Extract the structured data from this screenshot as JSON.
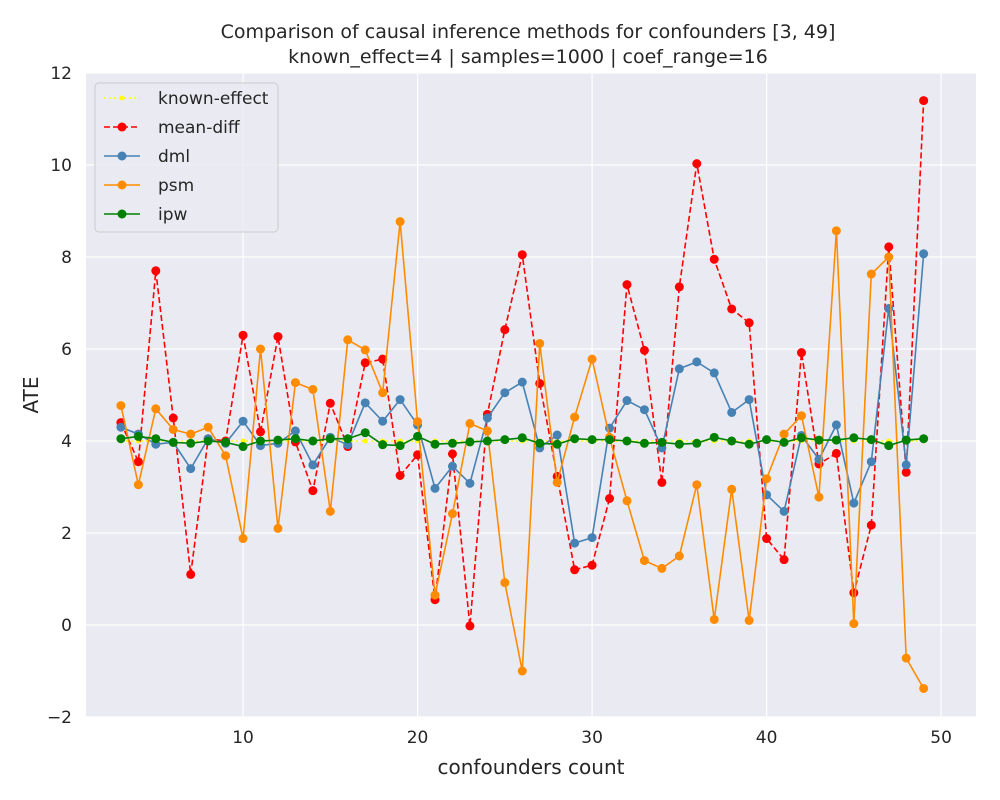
{
  "chart_data": {
    "type": "line",
    "title": "Comparison of causal inference methods for confounders [3, 49]",
    "subtitle": "known_effect=4 | samples=1000 | coef_range=16",
    "xlabel": "confounders count",
    "ylabel": "ATE",
    "xlim": [
      1,
      52
    ],
    "ylim": [
      -2,
      12
    ],
    "xticks": [
      10,
      20,
      30,
      40,
      50
    ],
    "yticks": [
      -2,
      0,
      2,
      4,
      6,
      8,
      10,
      12
    ],
    "ytick_labels": [
      "−2",
      "0",
      "2",
      "4",
      "6",
      "8",
      "10",
      "12"
    ],
    "grid": true,
    "legend_position": "top-left",
    "x": [
      3,
      4,
      5,
      6,
      7,
      8,
      9,
      10,
      11,
      12,
      13,
      14,
      15,
      16,
      17,
      18,
      19,
      20,
      21,
      22,
      23,
      24,
      25,
      26,
      27,
      28,
      29,
      30,
      31,
      32,
      33,
      34,
      35,
      36,
      37,
      38,
      39,
      40,
      41,
      42,
      43,
      44,
      45,
      46,
      47,
      48,
      49
    ],
    "series": [
      {
        "name": "known-effect",
        "color": "#ffff00",
        "dash": "dotted",
        "marker_size": 2.5,
        "values": [
          4,
          4,
          4,
          4,
          4,
          4,
          4,
          4,
          4,
          4,
          4,
          4,
          4,
          4,
          4,
          4,
          4,
          4,
          4,
          4,
          4,
          4,
          4,
          4,
          4,
          4,
          4,
          4,
          4,
          4,
          4,
          4,
          4,
          4,
          4,
          4,
          4,
          4,
          4,
          4,
          4,
          4,
          4,
          4,
          4,
          4,
          4
        ]
      },
      {
        "name": "mean-diff",
        "color": "#ff0000",
        "dash": "dashed",
        "marker_size": 4.5,
        "values": [
          4.4,
          3.55,
          7.7,
          4.5,
          1.1,
          4.05,
          4.0,
          6.3,
          4.2,
          6.27,
          3.98,
          2.92,
          4.82,
          3.88,
          5.7,
          5.78,
          3.25,
          3.7,
          0.55,
          3.72,
          -0.02,
          4.58,
          6.42,
          8.05,
          5.25,
          3.23,
          1.2,
          1.3,
          2.75,
          7.4,
          5.97,
          3.1,
          7.35,
          10.03,
          7.95,
          6.87,
          6.57,
          1.88,
          1.42,
          5.92,
          3.5,
          3.73,
          0.7,
          2.17,
          8.22,
          3.32,
          11.4
        ]
      },
      {
        "name": "dml",
        "color": "#4682b4",
        "dash": "solid",
        "marker_size": 4.5,
        "values": [
          4.3,
          4.15,
          3.93,
          3.97,
          3.4,
          4.05,
          3.95,
          4.43,
          3.9,
          3.95,
          4.22,
          3.48,
          4.08,
          3.92,
          4.83,
          4.43,
          4.9,
          4.35,
          2.97,
          3.45,
          3.08,
          4.5,
          5.05,
          5.28,
          3.85,
          4.13,
          1.78,
          1.9,
          4.28,
          4.88,
          4.68,
          3.85,
          5.57,
          5.72,
          5.48,
          4.62,
          4.9,
          2.83,
          2.47,
          4.12,
          3.6,
          4.35,
          2.65,
          3.55,
          6.88,
          3.48,
          8.07
        ]
      },
      {
        "name": "psm",
        "color": "#ff8c00",
        "dash": "solid",
        "marker_size": 4.5,
        "values": [
          4.77,
          3.05,
          4.7,
          4.25,
          4.15,
          4.3,
          3.68,
          1.88,
          6.0,
          2.1,
          5.27,
          5.12,
          2.47,
          6.2,
          5.98,
          5.05,
          8.77,
          4.42,
          0.65,
          2.42,
          4.38,
          4.22,
          0.92,
          -1.0,
          6.12,
          3.1,
          4.52,
          5.78,
          4.08,
          2.7,
          1.4,
          1.23,
          1.5,
          3.05,
          0.12,
          2.95,
          0.1,
          3.18,
          4.15,
          4.55,
          2.78,
          8.57,
          0.03,
          7.63,
          8.0,
          -0.72,
          -1.38
        ]
      },
      {
        "name": "ipw",
        "color": "#008000",
        "dash": "solid",
        "marker_size": 4.5,
        "values": [
          4.05,
          4.1,
          4.05,
          3.97,
          3.95,
          4.0,
          3.97,
          3.88,
          4.0,
          4.02,
          4.05,
          4.0,
          4.05,
          4.05,
          4.18,
          3.92,
          3.9,
          4.1,
          3.93,
          3.95,
          3.98,
          4.0,
          4.03,
          4.07,
          3.95,
          3.93,
          4.05,
          4.03,
          4.03,
          4.0,
          3.95,
          3.97,
          3.93,
          3.95,
          4.08,
          4.0,
          3.93,
          4.03,
          3.97,
          4.07,
          4.02,
          4.02,
          4.07,
          4.03,
          3.9,
          4.02,
          4.05
        ]
      }
    ]
  }
}
